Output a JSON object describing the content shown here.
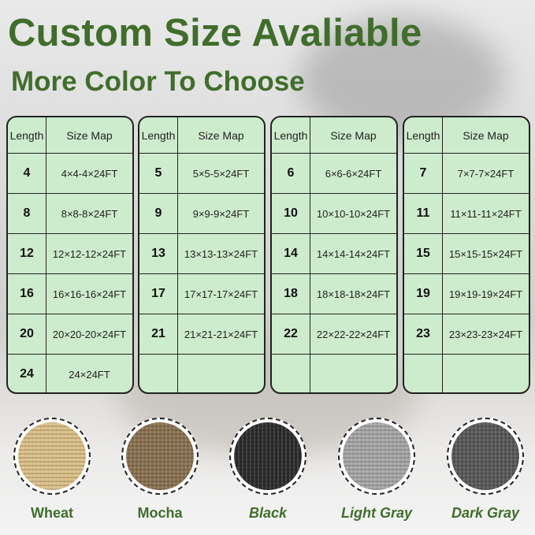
{
  "title": "Custom Size Avaliable",
  "subtitle": "More Color To Choose",
  "table_headers": {
    "length": "Length",
    "size_map": "Size Map"
  },
  "tables": [
    {
      "rows": [
        [
          "4",
          "4×4-4×24FT"
        ],
        [
          "8",
          "8×8-8×24FT"
        ],
        [
          "12",
          "12×12-12×24FT"
        ],
        [
          "16",
          "16×16-16×24FT"
        ],
        [
          "20",
          "20×20-20×24FT"
        ],
        [
          "24",
          "24×24FT"
        ]
      ]
    },
    {
      "rows": [
        [
          "5",
          "5×5-5×24FT"
        ],
        [
          "9",
          "9×9-9×24FT"
        ],
        [
          "13",
          "13×13-13×24FT"
        ],
        [
          "17",
          "17×17-17×24FT"
        ],
        [
          "21",
          "21×21-21×24FT"
        ],
        [
          "",
          ""
        ]
      ]
    },
    {
      "rows": [
        [
          "6",
          "6×6-6×24FT"
        ],
        [
          "10",
          "10×10-10×24FT"
        ],
        [
          "14",
          "14×14-14×24FT"
        ],
        [
          "18",
          "18×18-18×24FT"
        ],
        [
          "22",
          "22×22-22×24FT"
        ],
        [
          "",
          ""
        ]
      ]
    },
    {
      "rows": [
        [
          "7",
          "7×7-7×24FT"
        ],
        [
          "11",
          "11×11-11×24FT"
        ],
        [
          "15",
          "15×15-15×24FT"
        ],
        [
          "19",
          "19×19-19×24FT"
        ],
        [
          "23",
          "23×23-23×24FT"
        ],
        [
          "",
          ""
        ]
      ]
    }
  ],
  "colors": [
    {
      "name": "Wheat",
      "swatch": "#dcbf86"
    },
    {
      "name": "Mocha",
      "swatch": "#8a7150"
    },
    {
      "name": "Black",
      "swatch": "#2b2b2b"
    },
    {
      "name": "Light Gray",
      "swatch": "#a6a6a6"
    },
    {
      "name": "Dark Gray",
      "swatch": "#585858"
    }
  ],
  "accent": "#3f6e2a",
  "table_fill": "#cdeccd"
}
